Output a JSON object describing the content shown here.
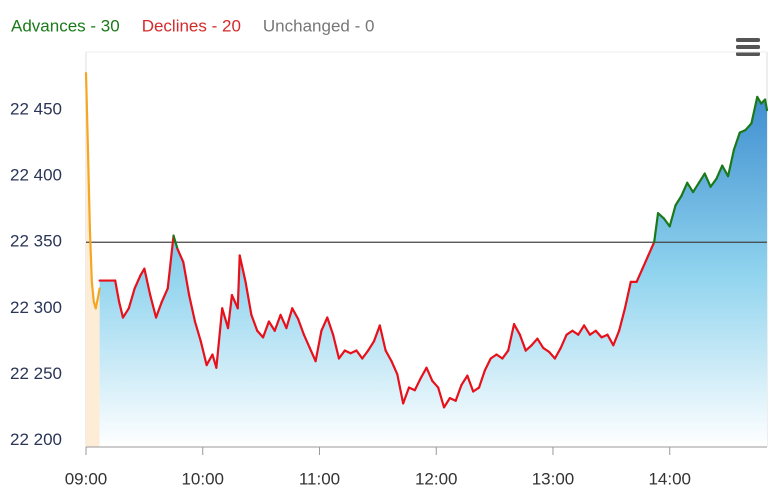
{
  "chart_data": {
    "type": "line",
    "breadth": [
      {
        "label": "Advances - 30",
        "color": "#1a7a1a"
      },
      {
        "label": "Declines - 20",
        "color": "#d42a2a"
      },
      {
        "label": "Unchanged - 0",
        "color": "#777777"
      }
    ],
    "series": [
      {
        "color": "#f5a623",
        "fill": "#fdecd6",
        "x": [
          "09:00",
          "09:01",
          "09:02",
          "09:03",
          "09:04",
          "09:05",
          "09:06",
          "09:07"
        ],
        "values": [
          22478,
          22420,
          22360,
          22320,
          22305,
          22300,
          22307,
          22315
        ]
      },
      {
        "color_above": "#1a7a1a",
        "color_below": "#e8101a",
        "x": [
          "09:07",
          "09:15",
          "09:17",
          "09:19",
          "09:22",
          "09:25",
          "09:28",
          "09:30",
          "09:33",
          "09:36",
          "09:39",
          "09:42",
          "09:45",
          "09:47",
          "09:50",
          "09:53",
          "09:56",
          "09:59",
          "10:02",
          "10:05",
          "10:07",
          "10:10",
          "10:13",
          "10:15",
          "10:18",
          "10:19",
          "10:22",
          "10:25",
          "10:28",
          "10:31",
          "10:34",
          "10:37",
          "10:40",
          "10:43",
          "10:46",
          "10:49",
          "10:52",
          "10:55",
          "10:58",
          "11:01",
          "11:04",
          "11:07",
          "11:10",
          "11:13",
          "11:16",
          "11:19",
          "11:22",
          "11:25",
          "11:28",
          "11:31",
          "11:34",
          "11:37",
          "11:40",
          "11:43",
          "11:46",
          "11:49",
          "11:52",
          "11:55",
          "11:58",
          "12:01",
          "12:04",
          "12:07",
          "12:10",
          "12:13",
          "12:16",
          "12:19",
          "12:22",
          "12:25",
          "12:28",
          "12:31",
          "12:34",
          "12:37",
          "12:40",
          "12:43",
          "12:46",
          "12:49",
          "12:52",
          "12:55",
          "12:58",
          "13:01",
          "13:04",
          "13:07",
          "13:10",
          "13:13",
          "13:16",
          "13:19",
          "13:22",
          "13:25",
          "13:28",
          "13:31",
          "13:34",
          "13:37",
          "13:40",
          "13:43",
          "13:46",
          "13:49",
          "13:52",
          "13:54",
          "13:57",
          "14:00",
          "14:03",
          "14:06",
          "14:09",
          "14:12",
          "14:15",
          "14:18",
          "14:21",
          "14:24",
          "14:27",
          "14:30",
          "14:33",
          "14:36",
          "14:39",
          "14:42",
          "14:45",
          "14:47",
          "14:49",
          "14:50"
        ],
        "values": [
          22321,
          22321,
          22305,
          22293,
          22300,
          22315,
          22325,
          22330,
          22310,
          22293,
          22305,
          22315,
          22355,
          22345,
          22335,
          22310,
          22290,
          22275,
          22257,
          22265,
          22255,
          22300,
          22285,
          22310,
          22300,
          22340,
          22320,
          22295,
          22283,
          22278,
          22290,
          22283,
          22295,
          22285,
          22300,
          22292,
          22280,
          22270,
          22260,
          22283,
          22293,
          22280,
          22262,
          22268,
          22266,
          22268,
          22262,
          22268,
          22275,
          22287,
          22268,
          22260,
          22250,
          22228,
          22240,
          22238,
          22247,
          22255,
          22245,
          22240,
          22225,
          22232,
          22230,
          22242,
          22249,
          22237,
          22240,
          22253,
          22262,
          22265,
          22262,
          22268,
          22288,
          22280,
          22268,
          22272,
          22277,
          22270,
          22267,
          22262,
          22270,
          22280,
          22283,
          22280,
          22287,
          22280,
          22283,
          22278,
          22280,
          22272,
          22283,
          22300,
          22320,
          22320,
          22330,
          22340,
          22350,
          22372,
          22368,
          22362,
          22378,
          22385,
          22395,
          22388,
          22395,
          22402,
          22392,
          22398,
          22408,
          22400,
          22420,
          22433,
          22435,
          22440,
          22460,
          22455,
          22458,
          22450
        ]
      }
    ],
    "baseline": 22350,
    "xlim": [
      "09:00",
      "14:50"
    ],
    "xticks": [
      "09:00",
      "10:00",
      "11:00",
      "12:00",
      "13:00",
      "14:00"
    ],
    "ylim": [
      22195,
      22494
    ],
    "yticks": [
      {
        "value": 22200,
        "label": "22 200"
      },
      {
        "value": 22250,
        "label": "22 250"
      },
      {
        "value": 22300,
        "label": "22 300"
      },
      {
        "value": 22350,
        "label": "22 350"
      },
      {
        "value": 22400,
        "label": "22 400"
      },
      {
        "value": 22450,
        "label": "22 450"
      }
    ]
  }
}
